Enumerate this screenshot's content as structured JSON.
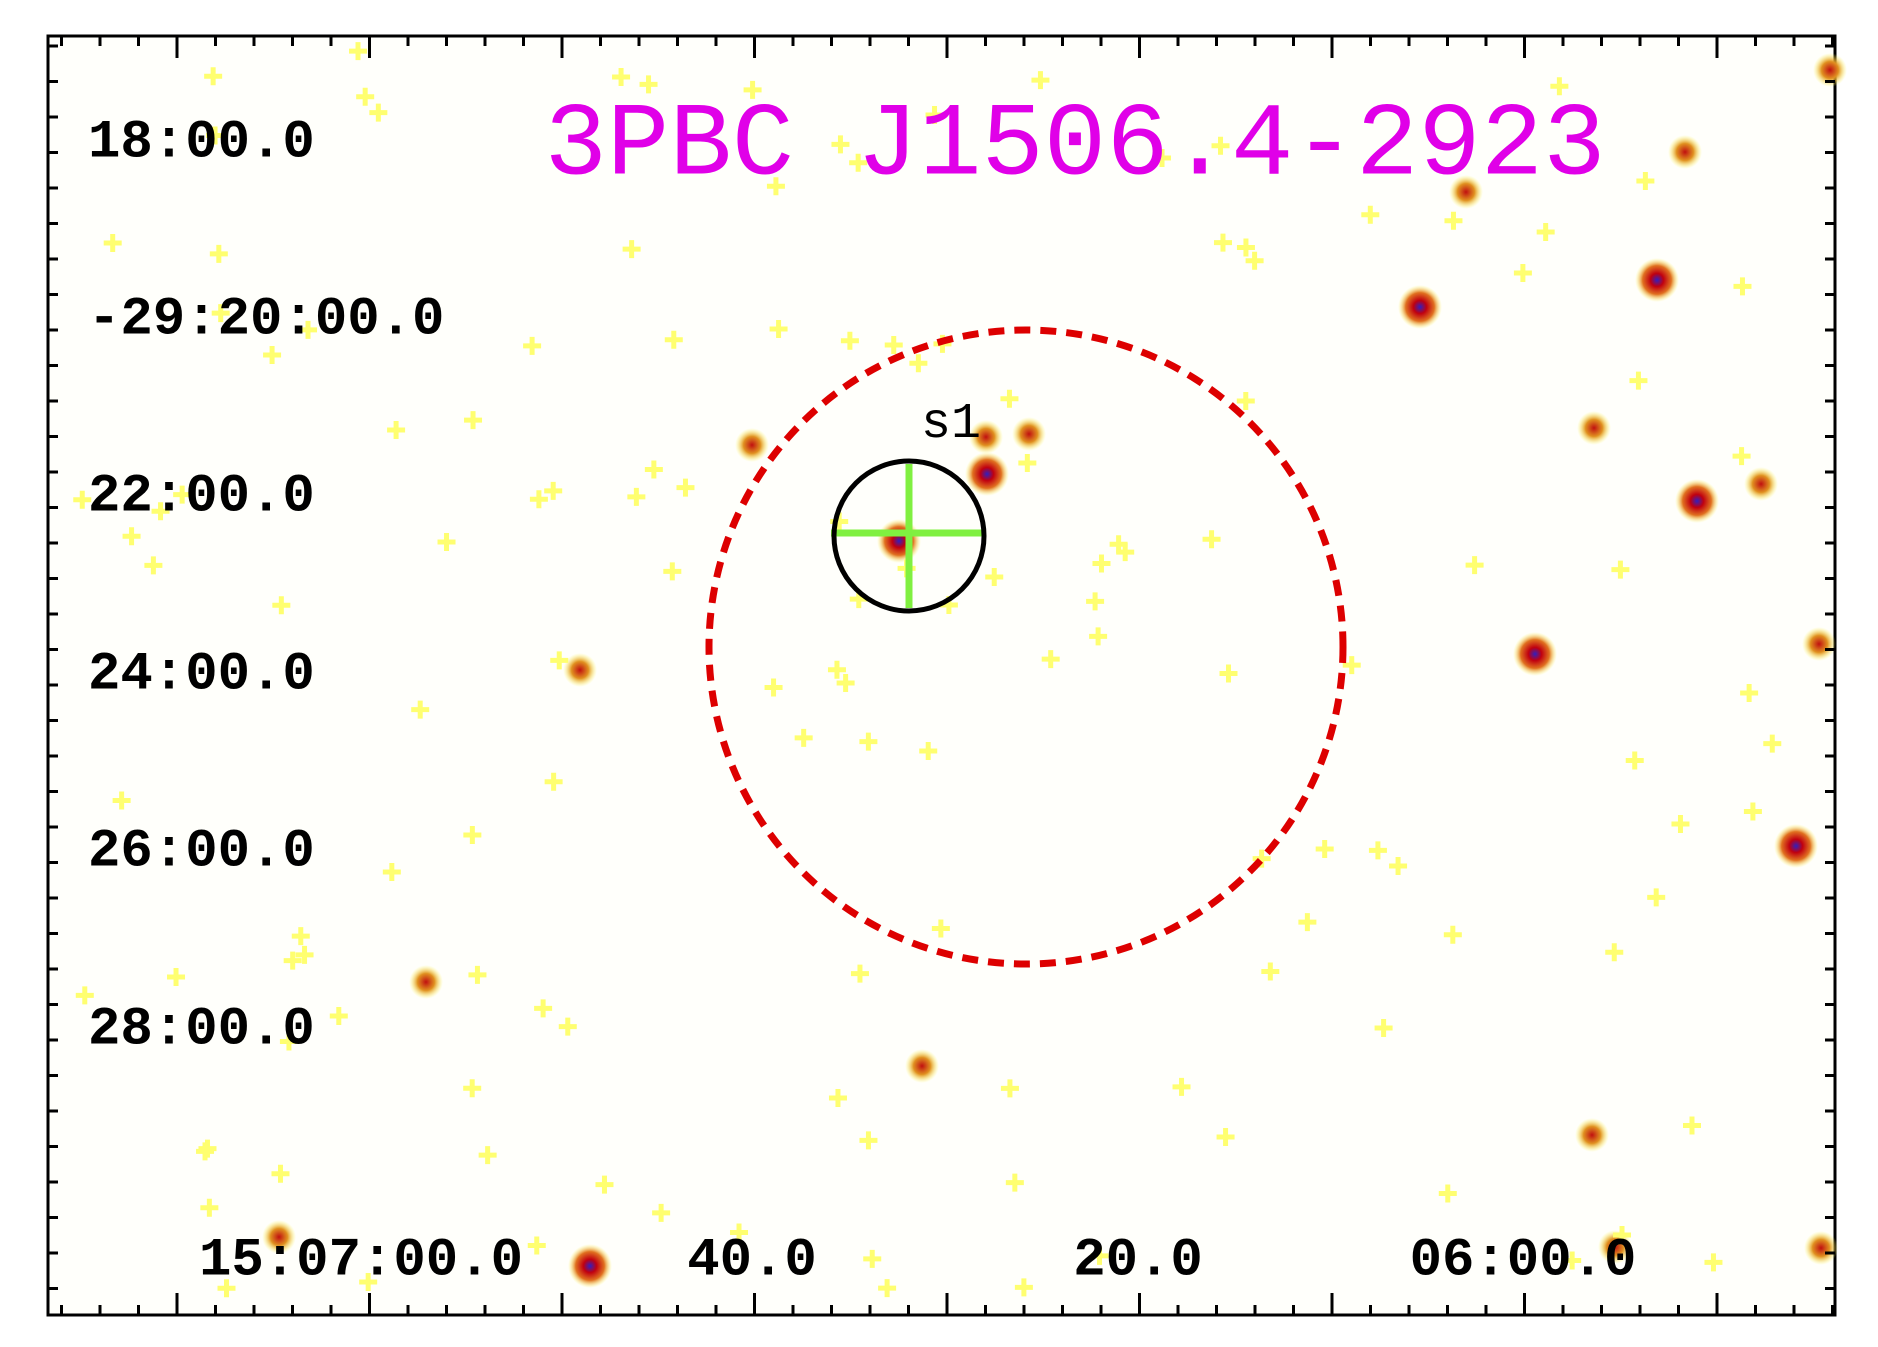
{
  "title": "3PBC J1506.4-2923",
  "source_label": "s1",
  "dec_labels": [
    "18:00.0",
    "-29:20:00.0",
    "22:00.0",
    "24:00.0",
    "26:00.0",
    "28:00.0"
  ],
  "ra_labels": [
    "15:07:00.0",
    "40.0",
    "20.0",
    "06:00.0"
  ]
}
